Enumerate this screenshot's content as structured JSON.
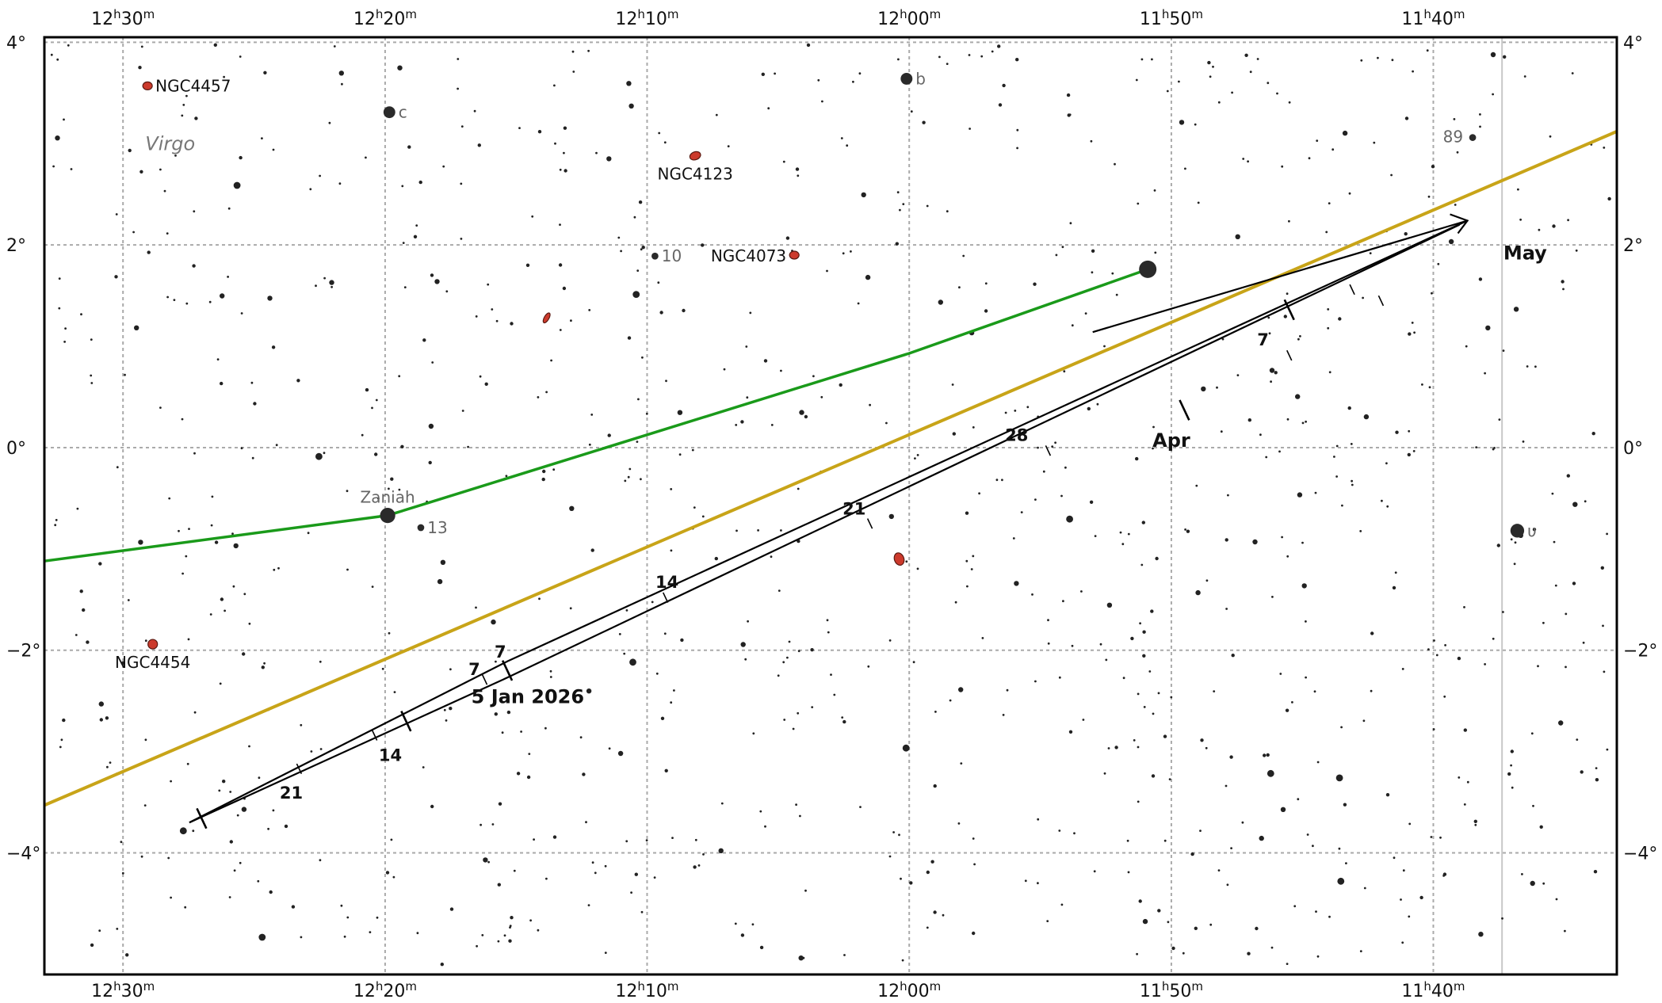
{
  "map": {
    "ra_range_h": [
      11.55,
      12.55
    ],
    "dec_range": [
      -5.2,
      4.05
    ],
    "grid_ra_h": [
      12.5,
      12.3333,
      12.1667,
      12.0,
      11.8333,
      11.6667
    ],
    "grid_dec": [
      4,
      2,
      0,
      -2,
      -4
    ],
    "ra_labels": [
      {
        "ra": 12.5,
        "h": "12",
        "m": "30"
      },
      {
        "ra": 12.3333,
        "h": "12",
        "m": "20"
      },
      {
        "ra": 12.1667,
        "h": "12",
        "m": "10"
      },
      {
        "ra": 12.0,
        "h": "12",
        "m": "00"
      },
      {
        "ra": 11.8333,
        "h": "11",
        "m": "50"
      },
      {
        "ra": 11.6667,
        "h": "11",
        "m": "40"
      }
    ],
    "dec_labels": [
      {
        "dec": 4,
        "text": "4°"
      },
      {
        "dec": 2,
        "text": "2°"
      },
      {
        "dec": 0,
        "text": "0°"
      },
      {
        "dec": -2,
        "text": "−2°"
      },
      {
        "dec": -4,
        "text": "−4°"
      }
    ],
    "constellation": {
      "name": "Virgo",
      "ra": 12.47,
      "dec": 3.0
    },
    "boundary_ra": 11.623,
    "colors": {
      "grid": "#aaaaaa",
      "ecliptic": "#c8a418",
      "equator_path": "#1a9a1a",
      "track": "#000000",
      "galaxy": "#cc3a2c",
      "boundary": "#c8c8c8"
    }
  },
  "bright_stars": [
    {
      "ra": 12.3306,
      "dec": 3.31,
      "mag": 4.6,
      "label": "c"
    },
    {
      "ra": 12.0017,
      "dec": 3.64,
      "mag": 4.6,
      "label": "b"
    },
    {
      "ra": 12.1617,
      "dec": 1.89,
      "mag": 5.6,
      "label": "10"
    },
    {
      "ra": 11.6417,
      "dec": 3.06,
      "mag": 5.6,
      "label": "89"
    },
    {
      "ra": 12.3317,
      "dec": -0.67,
      "mag": 3.9,
      "label": "Zaniah"
    },
    {
      "ra": 12.3106,
      "dec": -0.79,
      "mag": 5.6,
      "label": "13"
    },
    {
      "ra": 11.6133,
      "dec": -0.82,
      "mag": 4.2,
      "label": "υ"
    }
  ],
  "galaxies": [
    {
      "ra": 12.4844,
      "dec": 3.57,
      "label": "NGC4457",
      "rx": 6,
      "ry": 5,
      "rot": 0
    },
    {
      "ra": 12.1361,
      "dec": 2.88,
      "label": "NGC4123",
      "rx": 7,
      "ry": 5,
      "rot": -20
    },
    {
      "ra": 12.0731,
      "dec": 1.9,
      "label": "NGC4073",
      "rx": 6,
      "ry": 5,
      "rot": 0
    },
    {
      "ra": 12.2306,
      "dec": 1.28,
      "label": "",
      "rx": 7,
      "ry": 3,
      "rot": -60
    },
    {
      "ra": 12.0064,
      "dec": -1.1,
      "label": "",
      "rx": 6,
      "ry": 8,
      "rot": -20
    },
    {
      "ra": 12.4811,
      "dec": -1.94,
      "label": "NGC4454",
      "rx": 6,
      "ry": 6,
      "rot": 0
    }
  ],
  "comet": {
    "ra": 11.8483,
    "dec": 1.76
  },
  "green_path": [
    {
      "ra": 12.55,
      "dec": -1.12
    },
    {
      "ra": 12.3317,
      "dec": -0.67
    },
    {
      "ra": 12.0,
      "dec": 0.93
    },
    {
      "ra": 11.8483,
      "dec": 1.76
    }
  ],
  "ecliptic": [
    {
      "ra": 12.55,
      "dec": -3.53
    },
    {
      "ra": 11.55,
      "dec": 3.12
    }
  ],
  "track": {
    "segment_a": [
      {
        "ra": 12.4578,
        "dec": -3.7
      },
      {
        "ra": 12.2556,
        "dec": -2.11
      },
      {
        "ra": 11.645,
        "dec": 2.24
      },
      {
        "ra": 11.8833,
        "dec": 1.14
      }
    ],
    "segment_b": [
      {
        "ra": 12.4578,
        "dec": -3.7
      },
      {
        "ra": 12.2556,
        "dec": -2.27
      },
      {
        "ra": 11.65,
        "dec": 2.2
      }
    ],
    "ticks_major": [
      {
        "ra": 12.45,
        "dec": -3.66
      },
      {
        "ra": 12.32,
        "dec": -2.7
      },
      {
        "ra": 12.2556,
        "dec": -2.2
      },
      {
        "ra": 11.825,
        "dec": 0.37
      },
      {
        "ra": 11.7583,
        "dec": 1.36
      }
    ],
    "ticks_minor": [
      {
        "ra": 12.388,
        "dec": -3.17
      },
      {
        "ra": 12.34,
        "dec": -2.84
      },
      {
        "ra": 12.27,
        "dec": -2.29
      },
      {
        "ra": 12.155,
        "dec": -1.48
      },
      {
        "ra": 12.025,
        "dec": -0.75
      },
      {
        "ra": 11.9117,
        "dec": -0.03
      },
      {
        "ra": 11.7583,
        "dec": 0.91
      },
      {
        "ra": 11.7183,
        "dec": 1.56
      },
      {
        "ra": 11.7,
        "dec": 1.45
      }
    ],
    "labels": [
      {
        "ra": 12.393,
        "dec": -3.4,
        "text": "21",
        "cls": "date-label"
      },
      {
        "ra": 12.33,
        "dec": -3.03,
        "text": "14",
        "cls": "date-label"
      },
      {
        "ra": 12.2766,
        "dec": -2.18,
        "text": "7",
        "cls": "date-label"
      },
      {
        "ra": 12.26,
        "dec": -2.01,
        "text": "7",
        "cls": "date-label"
      },
      {
        "ra": 12.2426,
        "dec": -2.46,
        "text": "5 Jan 2026",
        "cls": "big-label"
      },
      {
        "ra": 12.154,
        "dec": -1.32,
        "text": "14",
        "cls": "date-label"
      },
      {
        "ra": 12.035,
        "dec": -0.6,
        "text": "21",
        "cls": "date-label"
      },
      {
        "ra": 11.9317,
        "dec": 0.13,
        "text": "28",
        "cls": "date-label"
      },
      {
        "ra": 11.8333,
        "dec": 0.07,
        "text": "Apr",
        "cls": "big-label"
      },
      {
        "ra": 11.775,
        "dec": 1.07,
        "text": "7",
        "cls": "date-label"
      },
      {
        "ra": 11.6083,
        "dec": 1.92,
        "text": "May",
        "cls": "big-label"
      }
    ]
  }
}
